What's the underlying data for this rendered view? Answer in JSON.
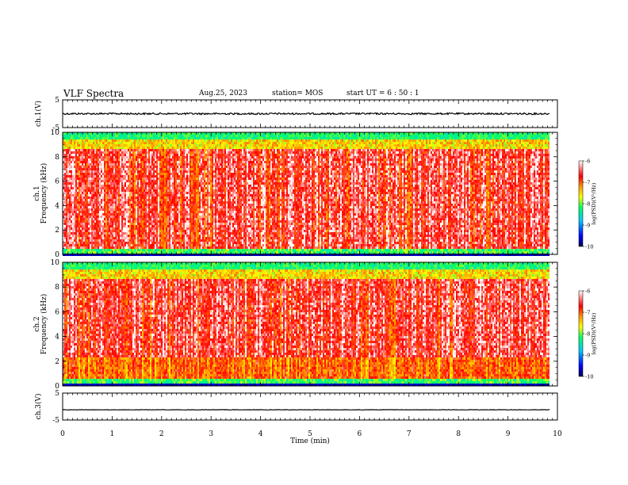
{
  "header": {
    "title": "VLF Spectra",
    "date": "Aug.25, 2023",
    "station": "station= MOS",
    "start": "start  UT  =   6  : 50 : 1"
  },
  "chart_data": [
    {
      "type": "line",
      "name": "ch.1 waveform",
      "ylabel": "ch.1(V)",
      "ylim": [
        -5,
        5
      ],
      "yticks": [
        "5",
        "-5"
      ],
      "x_range_min": [
        0,
        9.85
      ],
      "level_v": 0.0
    },
    {
      "type": "heatmap",
      "name": "ch.1 spectrogram",
      "ylabel_top": "ch.1",
      "ylabel": "Frequency (kHz)",
      "ylim": [
        0,
        10
      ],
      "yticks": [
        "0",
        "2",
        "4",
        "6",
        "8",
        "10"
      ],
      "colorbar": {
        "label": "log(PSD)(V²/Hz)",
        "range": [
          -10,
          -6
        ],
        "ticks": [
          "-6",
          "-7",
          "-8",
          "-9",
          "-10"
        ]
      }
    },
    {
      "type": "heatmap",
      "name": "ch.2 spectrogram",
      "ylabel_top": "ch.2",
      "ylabel": "Frequency (kHz)",
      "ylim": [
        0,
        10
      ],
      "yticks": [
        "0",
        "2",
        "4",
        "6",
        "8",
        "10"
      ],
      "colorbar": {
        "label": "log(PSD)(V²/Hz)",
        "range": [
          -10,
          -6
        ],
        "ticks": [
          "-6",
          "-7",
          "-8",
          "-9",
          "-10"
        ]
      }
    },
    {
      "type": "line",
      "name": "ch.3 waveform",
      "ylabel": "ch.3(V)",
      "ylim": [
        -5,
        5
      ],
      "yticks": [
        "5",
        "-5"
      ],
      "level_v": -1.2
    }
  ],
  "x_axis": {
    "label": "Time  (min)",
    "range": [
      0,
      10
    ],
    "ticks": [
      "0",
      "1",
      "2",
      "3",
      "4",
      "5",
      "6",
      "7",
      "8",
      "9",
      "10"
    ],
    "data_end_min": 9.85
  },
  "colors": {
    "waveform": "#000000",
    "colormap": [
      "#000050",
      "#0000ff",
      "#00c8ff",
      "#00ff64",
      "#ffff00",
      "#ff9600",
      "#ff0000",
      "#ffffff"
    ]
  }
}
